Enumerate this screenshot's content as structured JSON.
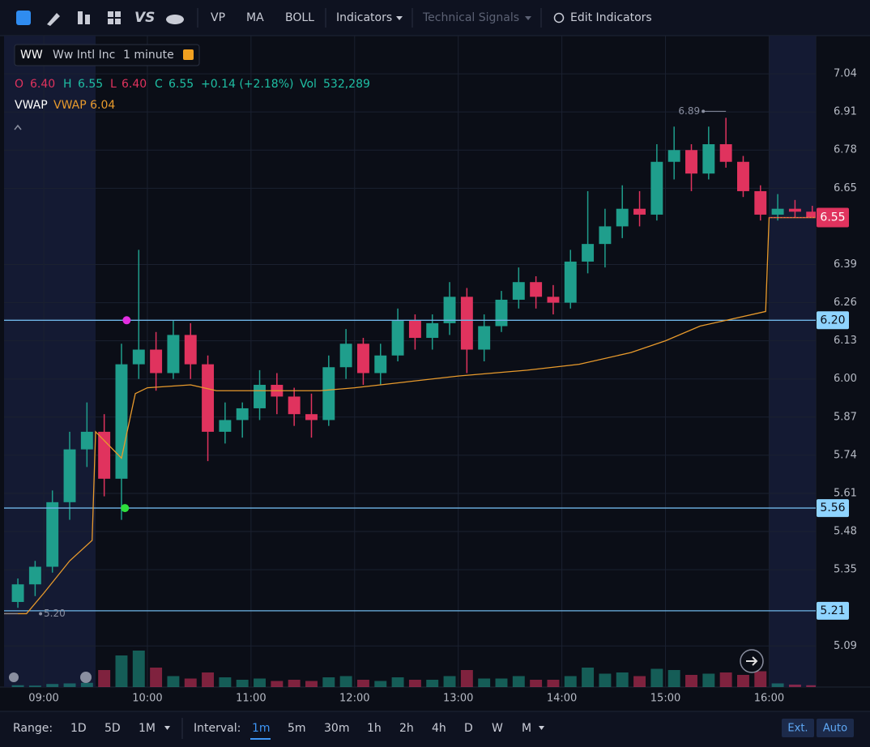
{
  "toolbar": {
    "items": [
      "VP",
      "MA",
      "BOLL",
      "Indicators",
      "Technical Signals",
      "Edit Indicators"
    ]
  },
  "symbol": {
    "ticker": "WW",
    "name": "Ww Intl Inc",
    "interval": "1 minute"
  },
  "quote": {
    "o_label": "O",
    "open": "6.40",
    "h_label": "H",
    "high": "6.55",
    "l_label": "L",
    "low": "6.40",
    "c_label": "C",
    "close": "6.55",
    "change": "+0.14 (+2.18%)",
    "vol_label": "Vol",
    "volume": "532,289"
  },
  "indicator": {
    "name": "VWAP",
    "value": "VWAP 6.04"
  },
  "chart_data": {
    "type": "candlestick",
    "up_color": "#1f9e8c",
    "down_color": "#e0335e",
    "xlim": [
      "08:37",
      "16:27"
    ],
    "xticks": [
      "09:00",
      "10:00",
      "11:00",
      "12:00",
      "13:00",
      "14:00",
      "15:00",
      "16:00"
    ],
    "ylim": [
      4.95,
      7.17
    ],
    "yticks": [
      7.04,
      6.91,
      6.78,
      6.65,
      6.39,
      6.26,
      6.13,
      {
        "value": 6,
        "label": "6.00"
      },
      5.87,
      5.74,
      5.61,
      5.48,
      5.35,
      5.09
    ],
    "grid": true,
    "regular_session": [
      "09:30",
      "16:00"
    ],
    "candles": {
      "x": [
        "08:40",
        "08:50",
        "09:00",
        "09:10",
        "09:20",
        "09:30",
        "09:40",
        "09:50",
        "10:00",
        "10:10",
        "10:20",
        "10:30",
        "10:40",
        "10:50",
        "11:00",
        "11:10",
        "11:20",
        "11:30",
        "11:40",
        "11:50",
        "12:00",
        "12:10",
        "12:20",
        "12:30",
        "12:40",
        "12:50",
        "13:00",
        "13:10",
        "13:20",
        "13:30",
        "13:40",
        "13:50",
        "14:00",
        "14:10",
        "14:20",
        "14:30",
        "14:40",
        "14:50",
        "15:00",
        "15:10",
        "15:20",
        "15:30",
        "15:40",
        "15:50",
        "16:00",
        "16:10",
        "16:20"
      ],
      "open": [
        5.24,
        5.3,
        5.36,
        5.58,
        5.76,
        5.82,
        5.66,
        6.05,
        6.1,
        6.02,
        6.15,
        6.05,
        5.82,
        5.86,
        5.9,
        5.98,
        5.94,
        5.88,
        5.86,
        6.04,
        6.12,
        6.02,
        6.08,
        6.2,
        6.14,
        6.19,
        6.28,
        6.1,
        6.18,
        6.27,
        6.33,
        6.28,
        6.26,
        6.4,
        6.46,
        6.52,
        6.58,
        6.56,
        6.74,
        6.78,
        6.7,
        6.8,
        6.74,
        6.64,
        6.56,
        6.58,
        6.57
      ],
      "high": [
        5.32,
        5.38,
        5.62,
        5.82,
        5.92,
        5.88,
        6.12,
        6.44,
        6.16,
        6.2,
        6.19,
        6.08,
        5.92,
        5.92,
        6.03,
        6.02,
        5.97,
        5.95,
        6.08,
        6.17,
        6.14,
        6.12,
        6.24,
        6.22,
        6.22,
        6.33,
        6.31,
        6.22,
        6.3,
        6.38,
        6.35,
        6.32,
        6.44,
        6.64,
        6.58,
        6.66,
        6.64,
        6.8,
        6.86,
        6.8,
        6.86,
        6.89,
        6.76,
        6.66,
        6.63,
        6.61,
        6.59
      ],
      "low": [
        5.22,
        5.26,
        5.34,
        5.52,
        5.7,
        5.6,
        5.52,
        6.0,
        5.96,
        6.0,
        6.0,
        5.72,
        5.78,
        5.8,
        5.86,
        5.88,
        5.84,
        5.8,
        5.84,
        6.0,
        5.98,
        5.98,
        6.06,
        6.1,
        6.1,
        6.15,
        6.02,
        6.06,
        6.16,
        6.24,
        6.24,
        6.22,
        6.24,
        6.36,
        6.38,
        6.48,
        6.52,
        6.54,
        6.68,
        6.64,
        6.68,
        6.72,
        6.62,
        6.54,
        6.54,
        6.55,
        6.55
      ],
      "close": [
        5.3,
        5.36,
        5.58,
        5.76,
        5.82,
        5.66,
        6.05,
        6.1,
        6.02,
        6.15,
        6.05,
        5.82,
        5.86,
        5.9,
        5.98,
        5.94,
        5.88,
        5.86,
        6.04,
        6.12,
        6.02,
        6.08,
        6.2,
        6.14,
        6.19,
        6.28,
        6.1,
        6.18,
        6.27,
        6.33,
        6.28,
        6.26,
        6.4,
        6.46,
        6.52,
        6.58,
        6.56,
        6.74,
        6.78,
        6.7,
        6.8,
        6.74,
        6.64,
        6.56,
        6.58,
        6.57,
        6.55
      ],
      "volume": [
        1500,
        1200,
        2500,
        3000,
        3500,
        14000,
        26000,
        30000,
        16000,
        9000,
        7000,
        12000,
        8000,
        6000,
        7000,
        5000,
        6000,
        5000,
        8000,
        9000,
        6000,
        5000,
        8000,
        6000,
        6000,
        9000,
        14000,
        7000,
        7000,
        9000,
        6000,
        6000,
        9000,
        16000,
        11000,
        12000,
        9000,
        15000,
        14000,
        10000,
        11000,
        12000,
        10000,
        13000,
        3000,
        2000,
        1500
      ]
    },
    "vwap": {
      "name": "VWAP",
      "color": "#e89a2c",
      "x": [
        "08:37",
        "08:50",
        "09:00",
        "09:15",
        "09:28",
        "09:30",
        "09:45",
        "09:53",
        "10:00",
        "10:25",
        "10:40",
        "11:40",
        "12:00",
        "12:30",
        "13:00",
        "13:40",
        "14:10",
        "14:40",
        "15:00",
        "15:20",
        "15:58",
        "16:00",
        "16:27"
      ],
      "values": [
        5.2,
        5.2,
        5.27,
        5.38,
        5.45,
        5.82,
        5.73,
        5.95,
        5.97,
        5.98,
        5.96,
        5.96,
        5.97,
        5.99,
        6.01,
        6.03,
        6.05,
        6.09,
        6.13,
        6.18,
        6.23,
        6.55,
        6.55
      ]
    },
    "price_lines": [
      {
        "value": 6.2,
        "label": "6.20"
      },
      {
        "value": 5.56,
        "label": "5.56"
      },
      {
        "value": 5.21,
        "label": "5.21"
      }
    ],
    "last_price": {
      "value": 6.55,
      "label": "6.55"
    },
    "annotations": [
      {
        "x": "15:35",
        "y": 6.89,
        "label": "6.89"
      },
      {
        "x": "08:45",
        "y": 5.2,
        "label": "5.20"
      }
    ],
    "markers": [
      {
        "x": "09:48",
        "y": 6.2,
        "color": "#e22ee0"
      },
      {
        "x": "09:47",
        "y": 5.56,
        "color": "#2ee03c"
      }
    ]
  },
  "bottom_bar": {
    "range_label": "Range:",
    "ranges": [
      "1D",
      "5D",
      "1M"
    ],
    "interval_label": "Interval:",
    "intervals": [
      "1m",
      "5m",
      "30m",
      "1h",
      "2h",
      "4h",
      "D",
      "W",
      "M"
    ],
    "buttons": [
      "Ext.",
      "Auto"
    ]
  }
}
